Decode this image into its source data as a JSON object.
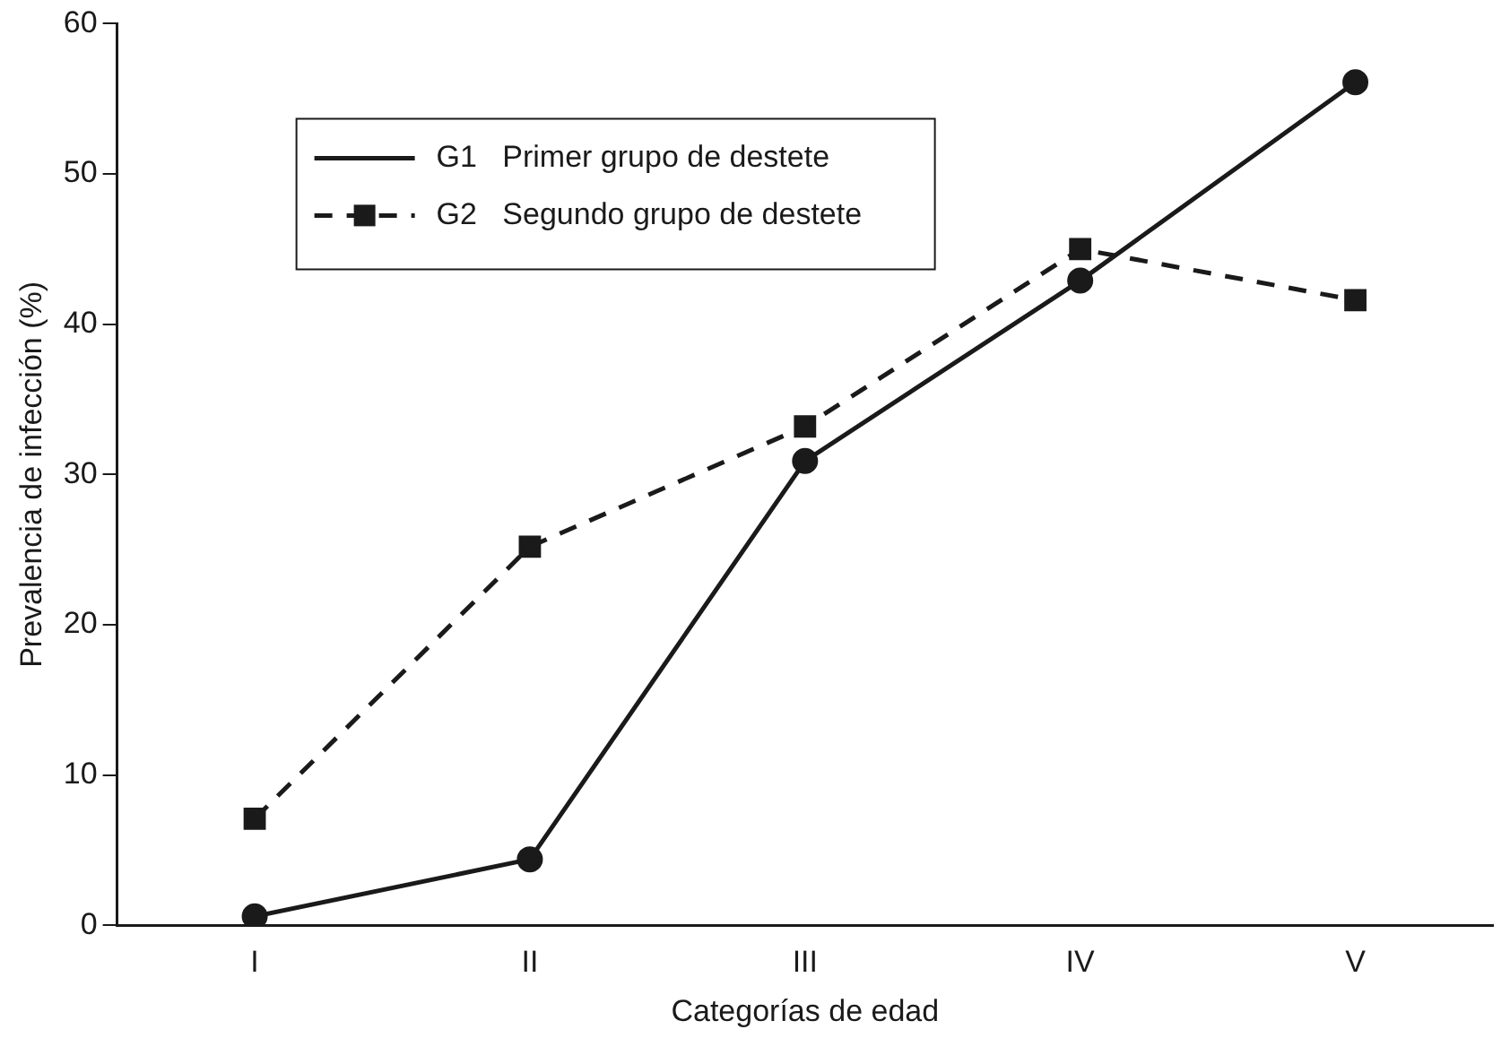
{
  "chart_data": {
    "type": "line",
    "xlabel": "Categorías de edad",
    "ylabel": "Prevalencia de infección (%)",
    "categories": [
      "I",
      "II",
      "III",
      "IV",
      "V"
    ],
    "series": [
      {
        "name": "G1   Primer grupo de destete",
        "color": "#1a1a1a",
        "values": [
          0.6,
          4.4,
          30.9,
          42.9,
          56.1
        ],
        "marker": "circle",
        "line_style": "solid"
      },
      {
        "name": "G2   Segundo grupo de destete",
        "color": "#1a1a1a",
        "values": [
          7.1,
          25.2,
          33.2,
          45.0,
          41.6
        ],
        "marker": "square",
        "line_style": "dashed"
      }
    ],
    "ylim": [
      0,
      60
    ],
    "yticks": [
      0,
      10,
      20,
      30,
      40,
      50,
      60
    ],
    "grid": false,
    "legend": "top left"
  }
}
